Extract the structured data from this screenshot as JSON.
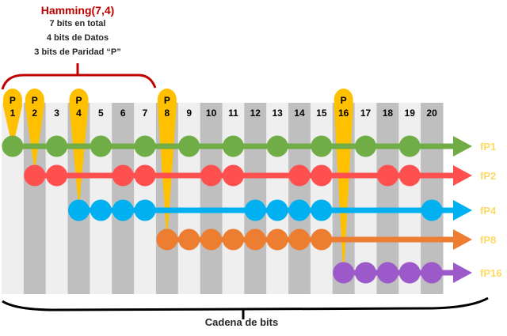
{
  "header": {
    "title": "Hamming(7,4)",
    "lines": [
      "7 bits en total",
      "4 bits de Datos",
      "3 bits de Paridad “P”"
    ]
  },
  "footer": {
    "label": "Cadena de bits"
  },
  "bits": {
    "count": 20,
    "parity_positions": [
      1,
      2,
      4,
      8,
      16
    ],
    "parity_prefix": "P",
    "column_colors": {
      "light": "#EFEFEF",
      "dark": "#BFBFBF"
    },
    "parity_color": "#FFC000"
  },
  "rows": [
    {
      "label": "fP1",
      "color": "#70AD47",
      "parity": 1,
      "bits": [
        1,
        3,
        5,
        7,
        9,
        11,
        13,
        15,
        17,
        19
      ]
    },
    {
      "label": "fP2",
      "color": "#FF5050",
      "parity": 2,
      "bits": [
        2,
        3,
        6,
        7,
        10,
        11,
        14,
        15,
        18,
        19
      ]
    },
    {
      "label": "fP4",
      "color": "#00B0F0",
      "parity": 4,
      "bits": [
        4,
        5,
        6,
        7,
        12,
        13,
        14,
        15,
        20
      ]
    },
    {
      "label": "fP8",
      "color": "#ED7D31",
      "parity": 8,
      "bits": [
        8,
        9,
        10,
        11,
        12,
        13,
        14,
        15
      ]
    },
    {
      "label": "fP16",
      "color": "#9B59C9",
      "parity": 16,
      "bits": [
        16,
        17,
        18,
        19,
        20
      ]
    }
  ],
  "row_label_color": "#FFD966",
  "bracket_color": "#C00000"
}
